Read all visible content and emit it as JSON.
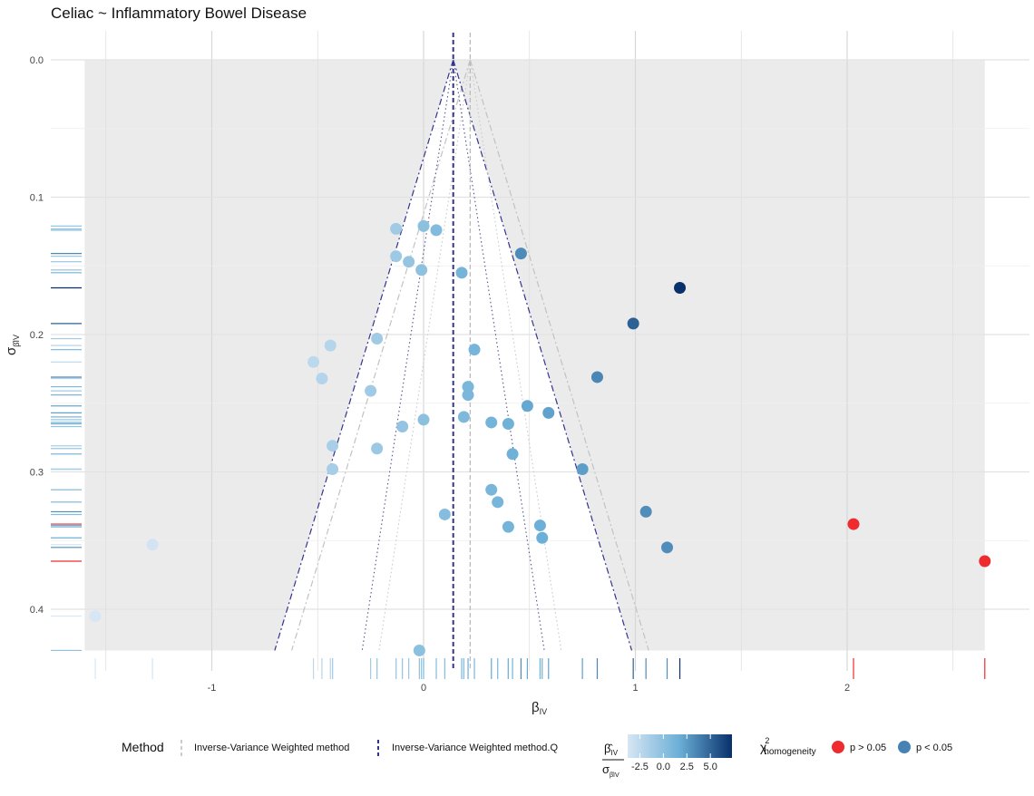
{
  "chart_data": {
    "type": "scatter",
    "title": "Celiac ~ Inflammatory Bowel Disease",
    "xlabel": "β",
    "xlabel_sub": "IV",
    "ylabel": "σ",
    "ylabel_sub": "β̂IV",
    "xlim": [
      -1.6,
      2.65
    ],
    "ylim_reversed": [
      0.0,
      0.43
    ],
    "x_ticks": [
      -1,
      0,
      1,
      2
    ],
    "x_tick_labels": [
      "-1",
      "0",
      "1",
      "2"
    ],
    "y_ticks": [
      0.0,
      0.1,
      0.2,
      0.3,
      0.4
    ],
    "y_tick_labels": [
      "0.0",
      "0.1",
      "0.2",
      "0.3",
      "0.4"
    ],
    "estimates": {
      "ivw": 0.22,
      "ivw_q": 0.14
    },
    "points": [
      {
        "x": -0.13,
        "se": 0.123,
        "z": -1.1
      },
      {
        "x": 0.0,
        "se": 0.121,
        "z": 0.0
      },
      {
        "x": 0.06,
        "se": 0.124,
        "z": 0.5
      },
      {
        "x": -0.13,
        "se": 0.143,
        "z": -0.9
      },
      {
        "x": -0.07,
        "se": 0.147,
        "z": -0.5
      },
      {
        "x": -0.01,
        "se": 0.153,
        "z": -0.1
      },
      {
        "x": 0.18,
        "se": 0.155,
        "z": 1.2
      },
      {
        "x": 0.46,
        "se": 0.141,
        "z": 3.3
      },
      {
        "x": 1.21,
        "se": 0.166,
        "z": 7.3
      },
      {
        "x": 0.99,
        "se": 0.192,
        "z": 5.2
      },
      {
        "x": -0.22,
        "se": 0.203,
        "z": -1.1
      },
      {
        "x": -0.44,
        "se": 0.208,
        "z": -2.1
      },
      {
        "x": -0.52,
        "se": 0.22,
        "z": -2.4
      },
      {
        "x": -0.48,
        "se": 0.232,
        "z": -2.0
      },
      {
        "x": 0.24,
        "se": 0.211,
        "z": 1.1
      },
      {
        "x": 0.82,
        "se": 0.231,
        "z": 3.5
      },
      {
        "x": -0.25,
        "se": 0.241,
        "z": -1.0
      },
      {
        "x": 0.21,
        "se": 0.238,
        "z": 0.9
      },
      {
        "x": 0.21,
        "se": 0.244,
        "z": 0.9
      },
      {
        "x": 0.49,
        "se": 0.252,
        "z": 2.0
      },
      {
        "x": 0.59,
        "se": 0.257,
        "z": 2.3
      },
      {
        "x": -0.1,
        "se": 0.267,
        "z": -0.4
      },
      {
        "x": 0.0,
        "se": 0.262,
        "z": 0.0
      },
      {
        "x": 0.19,
        "se": 0.26,
        "z": 0.7
      },
      {
        "x": 0.32,
        "se": 0.264,
        "z": 1.2
      },
      {
        "x": 0.4,
        "se": 0.265,
        "z": 1.5
      },
      {
        "x": -0.43,
        "se": 0.281,
        "z": -1.5
      },
      {
        "x": -0.22,
        "se": 0.283,
        "z": -0.8
      },
      {
        "x": 0.42,
        "se": 0.287,
        "z": 1.5
      },
      {
        "x": 0.75,
        "se": 0.298,
        "z": 2.5
      },
      {
        "x": -0.43,
        "se": 0.298,
        "z": -1.4
      },
      {
        "x": 0.32,
        "se": 0.313,
        "z": 1.0
      },
      {
        "x": 0.35,
        "se": 0.322,
        "z": 1.1
      },
      {
        "x": 0.1,
        "se": 0.331,
        "z": 0.3
      },
      {
        "x": 1.05,
        "se": 0.329,
        "z": 3.2
      },
      {
        "x": 0.4,
        "se": 0.34,
        "z": 1.2
      },
      {
        "x": 0.55,
        "se": 0.339,
        "z": 1.6
      },
      {
        "x": 0.56,
        "se": 0.348,
        "z": 1.6
      },
      {
        "x": 1.15,
        "se": 0.355,
        "z": 3.2
      },
      {
        "x": -1.28,
        "se": 0.353,
        "z": -3.6
      },
      {
        "x": 2.03,
        "se": 0.338,
        "z": 6.0,
        "heterogeneous": true
      },
      {
        "x": 2.65,
        "se": 0.365,
        "z": 7.2,
        "heterogeneous": true
      },
      {
        "x": -1.55,
        "se": 0.405,
        "z": -3.8
      },
      {
        "x": -0.02,
        "se": 0.43,
        "z": 0.0
      }
    ],
    "legend": {
      "method_title": "Method",
      "method_entries": [
        "Inverse-Variance Weighted method",
        "Inverse-Variance Weighted method.Q"
      ],
      "colorbar_title_top": "β̂",
      "colorbar_title_top_sub": "IV",
      "colorbar_title_bottom": "σ",
      "colorbar_title_bottom_sub": "β̂IV",
      "colorbar_ticks": [
        -2.5,
        0.0,
        2.5,
        5.0
      ],
      "colorbar_tick_labels": [
        "-2.5",
        "0.0",
        "2.5",
        "5.0"
      ],
      "homog_title": "χ",
      "homog_title_sup": "2",
      "homog_title_sub": "homogeneity",
      "homog_entries": [
        "p > 0.05",
        "p < 0.05"
      ]
    },
    "colors": {
      "panel_grey": "#ebebeb",
      "heterogeneous_red": "#ee2b2f",
      "homog_blue": "#4682b4",
      "ivw_line": "#bbbbbb",
      "ivw_q_line": "#33338f",
      "colorbar_low": "#d6e6f4",
      "colorbar_high": "#08306b"
    }
  }
}
